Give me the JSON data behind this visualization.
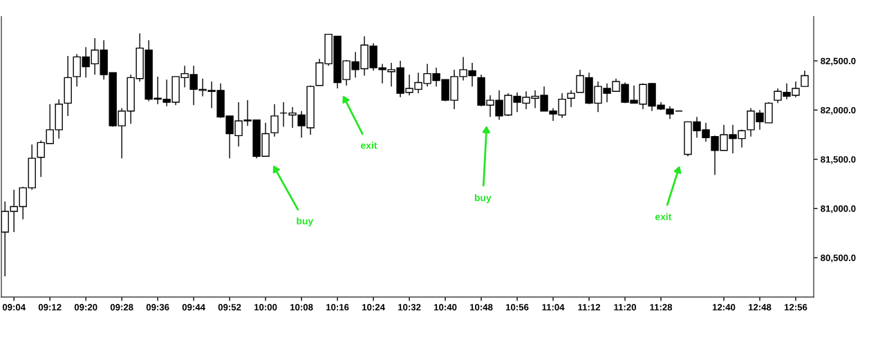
{
  "chart_data": {
    "type": "candlestick",
    "categories": [
      null,
      "09:04",
      null,
      null,
      null,
      "09:12",
      null,
      null,
      null,
      "09:20",
      null,
      null,
      null,
      "09:28",
      null,
      null,
      null,
      "09:36",
      null,
      null,
      null,
      "09:44",
      null,
      null,
      null,
      "09:52",
      null,
      null,
      null,
      "10:00",
      null,
      null,
      null,
      "10:08",
      null,
      null,
      null,
      "10:16",
      null,
      null,
      null,
      "10:24",
      null,
      null,
      null,
      "10:32",
      null,
      null,
      null,
      "10:40",
      null,
      null,
      null,
      "10:48",
      null,
      null,
      null,
      "10:56",
      null,
      null,
      null,
      "11:04",
      null,
      null,
      null,
      "11:12",
      null,
      null,
      null,
      "11:20",
      null,
      null,
      null,
      "11:28",
      null,
      null,
      null,
      null,
      null,
      null,
      "12:40",
      null,
      null,
      null,
      "12:48",
      null,
      null,
      null,
      "12:56",
      null
    ],
    "ohlc": [
      [
        80760,
        81070,
        80310,
        80970
      ],
      [
        80970,
        81190,
        80760,
        81020
      ],
      [
        81020,
        81220,
        80890,
        81210
      ],
      [
        81210,
        81650,
        81190,
        81510
      ],
      [
        81520,
        81690,
        81320,
        81670
      ],
      [
        81660,
        82060,
        81660,
        81800
      ],
      [
        81800,
        82110,
        81710,
        82060
      ],
      [
        82070,
        82550,
        81940,
        82330
      ],
      [
        82340,
        82570,
        82240,
        82540
      ],
      [
        82540,
        82640,
        82330,
        82440
      ],
      [
        82470,
        82730,
        82360,
        82610
      ],
      [
        82610,
        82710,
        82310,
        82360
      ],
      [
        82380,
        82380,
        81830,
        81840
      ],
      [
        81840,
        82020,
        81510,
        81990
      ],
      [
        81990,
        82360,
        81860,
        82330
      ],
      [
        82320,
        82780,
        82290,
        82630
      ],
      [
        82610,
        82710,
        82090,
        82110
      ],
      [
        82110,
        82340,
        82060,
        82120
      ],
      [
        82110,
        82310,
        82040,
        82080
      ],
      [
        82080,
        82340,
        82050,
        82340
      ],
      [
        82330,
        82450,
        82230,
        82370
      ],
      [
        82360,
        82450,
        82050,
        82210
      ],
      [
        82200,
        82320,
        82140,
        82210
      ],
      [
        82200,
        82290,
        82020,
        82190
      ],
      [
        82200,
        82270,
        81920,
        81930
      ],
      [
        81940,
        81940,
        81510,
        81760
      ],
      [
        81740,
        82080,
        81630,
        81890
      ],
      [
        81900,
        82100,
        81840,
        81890
      ],
      [
        81900,
        81900,
        81510,
        81530
      ],
      [
        81530,
        81870,
        81530,
        81760
      ],
      [
        81770,
        82060,
        81730,
        81940
      ],
      [
        81970,
        82080,
        81830,
        81970
      ],
      [
        81950,
        82030,
        81820,
        81970
      ],
      [
        81950,
        81990,
        81720,
        81840
      ],
      [
        81820,
        82250,
        81750,
        82240
      ],
      [
        82250,
        82520,
        82250,
        82480
      ],
      [
        82470,
        82770,
        82450,
        82770
      ],
      [
        82750,
        82750,
        82220,
        82280
      ],
      [
        82310,
        82510,
        82250,
        82500
      ],
      [
        82490,
        82590,
        82330,
        82410
      ],
      [
        82420,
        82750,
        82350,
        82660
      ],
      [
        82650,
        82680,
        82400,
        82430
      ],
      [
        82430,
        82470,
        82270,
        82410
      ],
      [
        82390,
        82480,
        82240,
        82410
      ],
      [
        82430,
        82500,
        82130,
        82170
      ],
      [
        82180,
        82360,
        82150,
        82220
      ],
      [
        82210,
        82380,
        82170,
        82280
      ],
      [
        82270,
        82470,
        82240,
        82370
      ],
      [
        82370,
        82430,
        82240,
        82300
      ],
      [
        82310,
        82310,
        82090,
        82100
      ],
      [
        82100,
        82410,
        82010,
        82340
      ],
      [
        82340,
        82540,
        82300,
        82410
      ],
      [
        82400,
        82480,
        82240,
        82350
      ],
      [
        82330,
        82360,
        82040,
        82050
      ],
      [
        82050,
        82150,
        81930,
        82100
      ],
      [
        82100,
        82200,
        81900,
        81940
      ],
      [
        81950,
        82170,
        81940,
        82150
      ],
      [
        82140,
        82180,
        81980,
        82080
      ],
      [
        82070,
        82190,
        82010,
        82130
      ],
      [
        82120,
        82200,
        82020,
        82140
      ],
      [
        82150,
        82240,
        81990,
        81990
      ],
      [
        81990,
        82020,
        81890,
        81960
      ],
      [
        81950,
        82170,
        81920,
        82110
      ],
      [
        82120,
        82200,
        82030,
        82170
      ],
      [
        82180,
        82410,
        82180,
        82350
      ],
      [
        82330,
        82380,
        82060,
        82070
      ],
      [
        82070,
        82290,
        81980,
        82240
      ],
      [
        82220,
        82270,
        82080,
        82170
      ],
      [
        82190,
        82320,
        82190,
        82290
      ],
      [
        82260,
        82280,
        82070,
        82080
      ],
      [
        82100,
        82250,
        82070,
        82070
      ],
      [
        82060,
        82270,
        82010,
        82260
      ],
      [
        82270,
        82270,
        81990,
        82040
      ],
      [
        82050,
        82080,
        82000,
        82010
      ],
      [
        82010,
        82040,
        81910,
        81960
      ],
      [
        81990,
        81990,
        81990,
        81990
      ],
      [
        81550,
        81880,
        81530,
        81880
      ],
      [
        81880,
        81930,
        81720,
        81790
      ],
      [
        81800,
        81870,
        81680,
        81720
      ],
      [
        81730,
        81740,
        81340,
        81590
      ],
      [
        81590,
        81850,
        81590,
        81750
      ],
      [
        81750,
        81850,
        81560,
        81710
      ],
      [
        81710,
        81800,
        81620,
        81790
      ],
      [
        81800,
        82020,
        81730,
        81990
      ],
      [
        81970,
        82000,
        81800,
        81880
      ],
      [
        81870,
        82080,
        81870,
        82070
      ],
      [
        82100,
        82220,
        82070,
        82190
      ],
      [
        82180,
        82270,
        82110,
        82140
      ],
      [
        82150,
        82290,
        82130,
        82220
      ],
      [
        82240,
        82400,
        82240,
        82350
      ]
    ],
    "ylim": [
      80100,
      82950
    ],
    "yticks": [
      {
        "value": 80500,
        "label": "80,500.0"
      },
      {
        "value": 81000,
        "label": "81,000.0"
      },
      {
        "value": 81500,
        "label": "81,500.0"
      },
      {
        "value": 82000,
        "label": "82,000.0"
      },
      {
        "value": 82500,
        "label": "82,500.0"
      }
    ],
    "annotations": [
      "buy",
      "exit",
      "buy",
      "exit"
    ]
  }
}
